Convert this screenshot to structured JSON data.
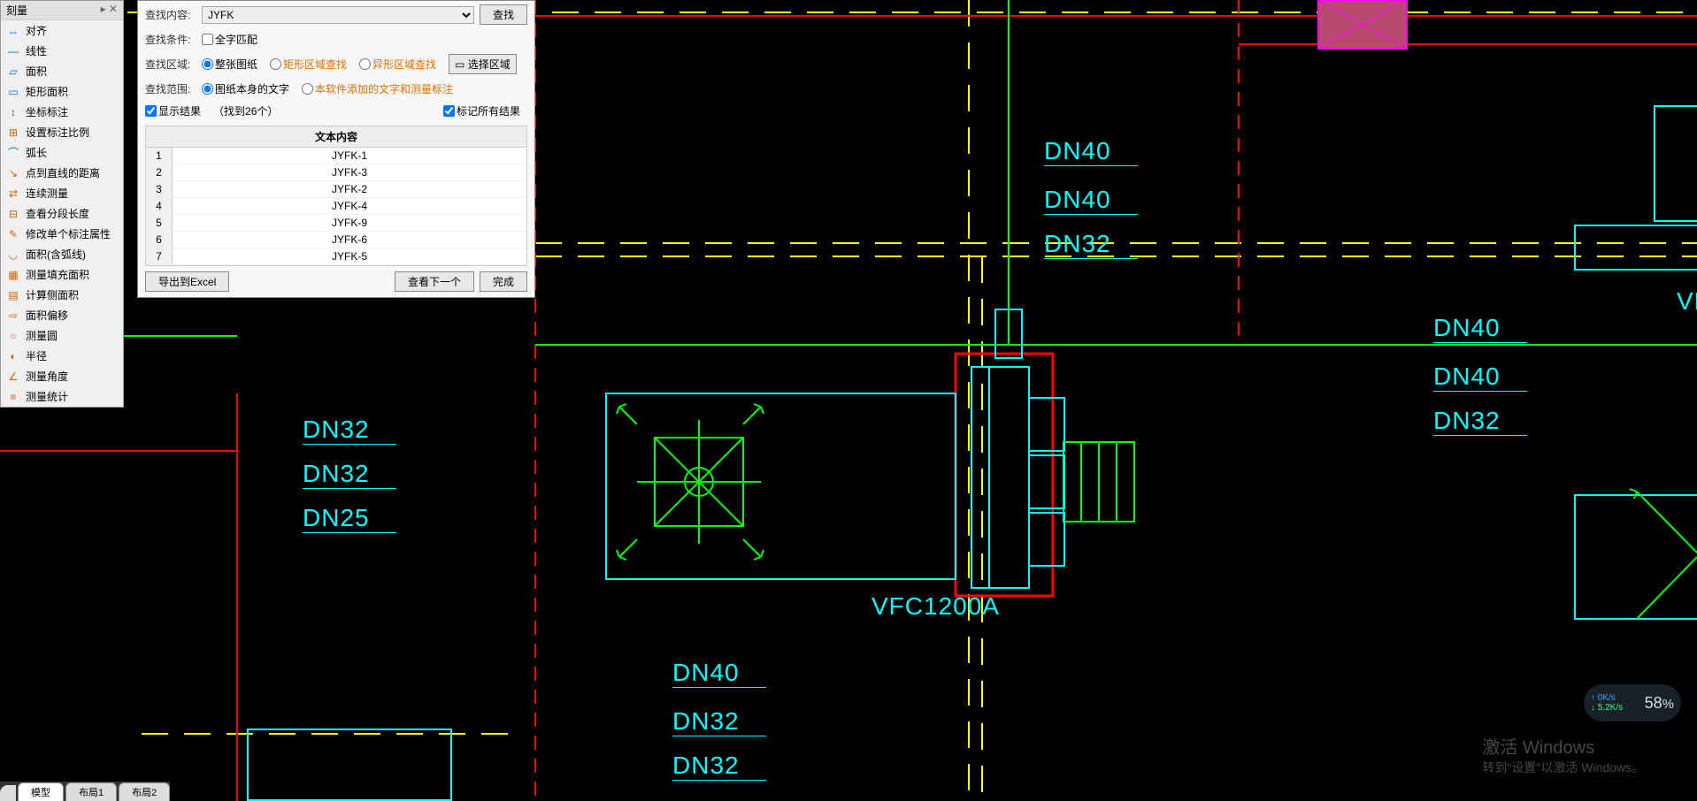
{
  "toolbar": {
    "title": "刻量",
    "items": [
      {
        "icon": "↔",
        "color": "#0066cc",
        "label": "对齐"
      },
      {
        "icon": "—",
        "color": "#0066cc",
        "label": "线性"
      },
      {
        "icon": "▱",
        "color": "#0066cc",
        "label": "面积"
      },
      {
        "icon": "▭",
        "color": "#0066cc",
        "label": "矩形面积"
      },
      {
        "icon": "↕",
        "color": "#0066cc",
        "label": "坐标标注"
      },
      {
        "icon": "⊞",
        "color": "#cc6600",
        "label": "设置标注比例"
      },
      {
        "icon": "⌒",
        "color": "#0066cc",
        "label": "弧长"
      },
      {
        "icon": "↘",
        "color": "#cc6600",
        "label": "点到直线的距离"
      },
      {
        "icon": "⇄",
        "color": "#cc6600",
        "label": "连续测量"
      },
      {
        "icon": "⊟",
        "color": "#cc6600",
        "label": "查看分段长度"
      },
      {
        "icon": "✎",
        "color": "#cc6600",
        "label": "修改单个标注属性"
      },
      {
        "icon": "◡",
        "color": "#cc6600",
        "label": "面积(含弧线)"
      },
      {
        "icon": "▦",
        "color": "#cc6600",
        "label": "测量填充面积"
      },
      {
        "icon": "▤",
        "color": "#cc6600",
        "label": "计算侧面积"
      },
      {
        "icon": "⇨",
        "color": "#cc6600",
        "label": "面积偏移"
      },
      {
        "icon": "○",
        "color": "#cc6600",
        "label": "测量圆"
      },
      {
        "icon": "◐",
        "color": "#cc6600",
        "label": "半径"
      },
      {
        "icon": "∠",
        "color": "#cc6600",
        "label": "测量角度"
      },
      {
        "icon": "≡",
        "color": "#cc6600",
        "label": "测量统计"
      }
    ]
  },
  "search": {
    "find_label": "查找内容:",
    "find_value": "JYFK",
    "find_btn": "查找",
    "cond_label": "查找条件:",
    "fullword": "全字匹配",
    "area_label": "查找区域:",
    "area_opts": [
      "整张图纸",
      "矩形区域查找",
      "异形区域查找"
    ],
    "select_area_btn": "选择区域",
    "scope_label": "查找范围:",
    "scope_opts": [
      "图纸本身的文字",
      "本软件添加的文字和测量标注"
    ],
    "show_result": "显示结果",
    "found_text": "（找到26个）",
    "mark_all": "标记所有结果",
    "col_header": "文本内容",
    "rows": [
      {
        "n": "1",
        "v": "JYFK-1"
      },
      {
        "n": "2",
        "v": "JYFK-3"
      },
      {
        "n": "3",
        "v": "JYFK-2"
      },
      {
        "n": "4",
        "v": "JYFK-4"
      },
      {
        "n": "5",
        "v": "JYFK-9"
      },
      {
        "n": "6",
        "v": "JYFK-6"
      },
      {
        "n": "7",
        "v": "JYFK-5"
      }
    ],
    "export_btn": "导出到Excel",
    "next_btn": "查看下一个",
    "done_btn": "完成"
  },
  "tabs": {
    "model": "模型",
    "layout1": "布局1",
    "layout2": "布局2"
  },
  "watermark": {
    "l1": "激活 Windows",
    "l2": "转到\"设置\"以激活 Windows。"
  },
  "net": {
    "up": "0K/s",
    "down": "5.2K/s",
    "pct": "58",
    "pct_unit": "%"
  },
  "cad": {
    "labels": {
      "g1": [
        "DN32",
        "DN32",
        "DN25"
      ],
      "g2": [
        "DN40",
        "DN40",
        "DN32"
      ],
      "g3": [
        "DN40",
        "DN40",
        "DN32"
      ],
      "g4": [
        "DN40",
        "DN32",
        "DN32"
      ],
      "vf": "VF",
      "vfc": "VFC1200A"
    },
    "colors": {
      "cyan": "#00ffff",
      "green": "#00ff00",
      "yellow": "#ffff00",
      "red": "#ff0000",
      "magenta_fill": "#b94a6f",
      "magenta_stroke": "#ff00ff"
    }
  }
}
